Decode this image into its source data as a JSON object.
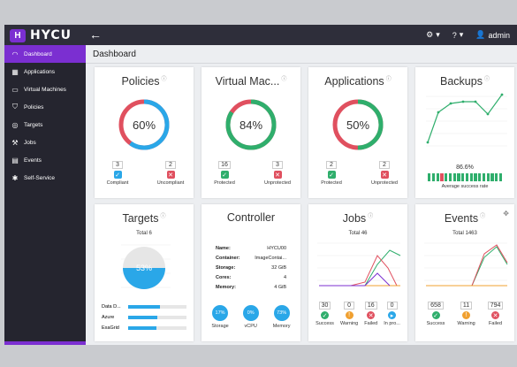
{
  "app": {
    "logo_text": "HYCU",
    "logo_letter": "H",
    "user": "admin"
  },
  "sidebar": {
    "items": [
      {
        "label": "Dashboard",
        "icon": "dashboard-icon"
      },
      {
        "label": "Applications",
        "icon": "grid-icon"
      },
      {
        "label": "Virtual Machines",
        "icon": "monitor-icon"
      },
      {
        "label": "Policies",
        "icon": "shield-icon"
      },
      {
        "label": "Targets",
        "icon": "target-icon"
      },
      {
        "label": "Jobs",
        "icon": "jobs-icon"
      },
      {
        "label": "Events",
        "icon": "calendar-icon"
      },
      {
        "label": "Self-Service",
        "icon": "gear-icon"
      }
    ]
  },
  "page_title": "Dashboard",
  "colors": {
    "accent": "#7b2fd1",
    "green": "#2fae6c",
    "red": "#e0505f",
    "blue": "#2aa7e8",
    "orange": "#f0a030"
  },
  "policies": {
    "title": "Policies",
    "percent": "60%",
    "fraction": 0.6,
    "compliant": "3",
    "compliant_label": "Compliant",
    "uncompliant": "2",
    "uncompliant_label": "Uncompliant"
  },
  "vms": {
    "title": "Virtual Mac...",
    "percent": "84%",
    "fraction": 0.84,
    "protected": "16",
    "protected_label": "Protected",
    "unprotected": "3",
    "unprotected_label": "Unprotected"
  },
  "apps": {
    "title": "Applications",
    "percent": "50%",
    "fraction": 0.5,
    "protected": "2",
    "protected_label": "Protected",
    "unprotected": "2",
    "unprotected_label": "Unprotected"
  },
  "backups": {
    "title": "Backups",
    "rate": "86.6%",
    "rate_label": "Average success rate"
  },
  "targets": {
    "title": "Targets",
    "total": "Total 6",
    "gauge_text": "53%",
    "rows": [
      {
        "label": "Data D..."
      },
      {
        "label": "Azure"
      },
      {
        "label": "ExaGrid"
      }
    ]
  },
  "controller": {
    "title": "Controller",
    "rows": [
      {
        "k": "Name:",
        "v": "HYCU00"
      },
      {
        "k": "Container:",
        "v": "ImageContai..."
      },
      {
        "k": "Storage:",
        "v": "32 GiB"
      },
      {
        "k": "Cores:",
        "v": "4"
      },
      {
        "k": "Memory:",
        "v": "4 GiB"
      }
    ],
    "meters": [
      {
        "pct": "17%",
        "label": "Storage"
      },
      {
        "pct": "0%",
        "label": "vCPU"
      },
      {
        "pct": "73%",
        "label": "Memory"
      }
    ]
  },
  "jobs": {
    "title": "Jobs",
    "total": "Total 46",
    "stats": [
      {
        "n": "30",
        "label": "Success"
      },
      {
        "n": "0",
        "label": "Warning"
      },
      {
        "n": "16",
        "label": "Failed"
      },
      {
        "n": "0",
        "label": "In pro..."
      }
    ]
  },
  "events": {
    "title": "Events",
    "total": "Total 1463",
    "stats": [
      {
        "n": "658",
        "label": "Success"
      },
      {
        "n": "11",
        "label": "Warning"
      },
      {
        "n": "794",
        "label": "Failed"
      }
    ]
  }
}
